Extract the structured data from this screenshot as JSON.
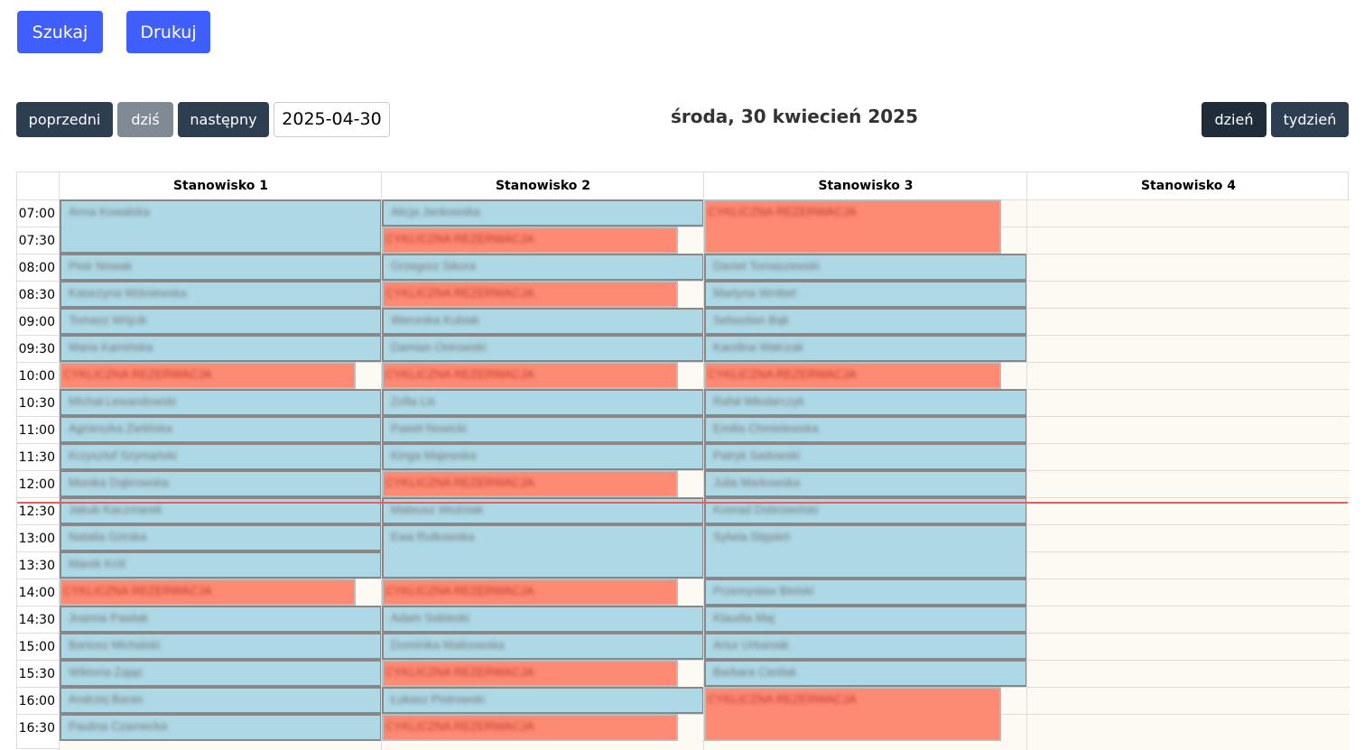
{
  "toolbar": {
    "search": "Szukaj",
    "print": "Drukuj",
    "prev": "poprzedni",
    "today": "dziś",
    "next": "następny",
    "date": "2025-04-30",
    "view_day": "dzień",
    "view_week": "tydzień"
  },
  "title": "środa, 30 kwiecień 2025",
  "now": "12:35",
  "colors": {
    "reservation": "#add8e6",
    "cyclic": "#fd8a73",
    "primary": "#3f5efb",
    "nav": "#2c3e50"
  },
  "times": [
    "07:00",
    "07:30",
    "08:00",
    "08:30",
    "09:00",
    "09:30",
    "10:00",
    "10:30",
    "11:00",
    "11:30",
    "12:00",
    "12:30",
    "13:00",
    "13:30",
    "14:00",
    "14:30",
    "15:00",
    "15:30",
    "16:00",
    "16:30"
  ],
  "columns": [
    {
      "name": "Stanowisko 1",
      "events": [
        {
          "start": "07:00",
          "slots": 2,
          "type": "r",
          "label": "Anna Kowalska"
        },
        {
          "start": "08:00",
          "slots": 1,
          "type": "r",
          "label": "Piotr Nowak"
        },
        {
          "start": "08:30",
          "slots": 1,
          "type": "r",
          "label": "Katarzyna Wiśniewska"
        },
        {
          "start": "09:00",
          "slots": 1,
          "type": "r",
          "label": "Tomasz Wójcik"
        },
        {
          "start": "09:30",
          "slots": 1,
          "type": "r",
          "label": "Maria Kamińska"
        },
        {
          "start": "10:00",
          "slots": 1,
          "type": "c",
          "label": "CYKLICZNA REZERWACJA"
        },
        {
          "start": "10:30",
          "slots": 1,
          "type": "r",
          "label": "Michał Lewandowski"
        },
        {
          "start": "11:00",
          "slots": 1,
          "type": "r",
          "label": "Agnieszka Zielińska"
        },
        {
          "start": "11:30",
          "slots": 1,
          "type": "r",
          "label": "Krzysztof Szymański"
        },
        {
          "start": "12:00",
          "slots": 1,
          "type": "r",
          "label": "Monika Dąbrowska"
        },
        {
          "start": "12:30",
          "slots": 1,
          "type": "r",
          "label": "Jakub Kaczmarek"
        },
        {
          "start": "13:00",
          "slots": 1,
          "type": "r",
          "label": "Natalia Górska"
        },
        {
          "start": "13:30",
          "slots": 1,
          "type": "r",
          "label": "Marek Król"
        },
        {
          "start": "14:00",
          "slots": 1,
          "type": "c",
          "label": "CYKLICZNA REZERWACJA"
        },
        {
          "start": "14:30",
          "slots": 1,
          "type": "r",
          "label": "Joanna Pawlak"
        },
        {
          "start": "15:00",
          "slots": 1,
          "type": "r",
          "label": "Bartosz Michalski"
        },
        {
          "start": "15:30",
          "slots": 1,
          "type": "r",
          "label": "Wiktoria Zając"
        },
        {
          "start": "16:00",
          "slots": 1,
          "type": "r",
          "label": "Andrzej Baran"
        },
        {
          "start": "16:30",
          "slots": 1,
          "type": "r",
          "label": "Paulina Czarnecka"
        }
      ]
    },
    {
      "name": "Stanowisko 2",
      "events": [
        {
          "start": "07:00",
          "slots": 1,
          "type": "r",
          "label": "Alicja Jankowska"
        },
        {
          "start": "07:30",
          "slots": 1,
          "type": "c",
          "label": "CYKLICZNA REZERWACJA"
        },
        {
          "start": "08:00",
          "slots": 1,
          "type": "r",
          "label": "Grzegorz Sikora"
        },
        {
          "start": "08:30",
          "slots": 1,
          "type": "c",
          "label": "CYKLICZNA REZERWACJA"
        },
        {
          "start": "09:00",
          "slots": 1,
          "type": "r",
          "label": "Weronika Kubiak"
        },
        {
          "start": "09:30",
          "slots": 1,
          "type": "r",
          "label": "Damian Ostrowski"
        },
        {
          "start": "10:00",
          "slots": 1,
          "type": "c",
          "label": "CYKLICZNA REZERWACJA"
        },
        {
          "start": "10:30",
          "slots": 1,
          "type": "r",
          "label": "Zofia Lis"
        },
        {
          "start": "11:00",
          "slots": 1,
          "type": "r",
          "label": "Paweł Nowicki"
        },
        {
          "start": "11:30",
          "slots": 1,
          "type": "r",
          "label": "Kinga Majewska"
        },
        {
          "start": "12:00",
          "slots": 1,
          "type": "c",
          "label": "CYKLICZNA REZERWACJA"
        },
        {
          "start": "12:30",
          "slots": 1,
          "type": "r",
          "label": "Mateusz Woźniak"
        },
        {
          "start": "13:00",
          "slots": 2,
          "type": "r",
          "label": "Ewa Rutkowska"
        },
        {
          "start": "14:00",
          "slots": 1,
          "type": "c",
          "label": "CYKLICZNA REZERWACJA"
        },
        {
          "start": "14:30",
          "slots": 1,
          "type": "r",
          "label": "Adam Sobieski"
        },
        {
          "start": "15:00",
          "slots": 1,
          "type": "r",
          "label": "Dominika Malinowska"
        },
        {
          "start": "15:30",
          "slots": 1,
          "type": "c",
          "label": "CYKLICZNA REZERWACJA"
        },
        {
          "start": "16:00",
          "slots": 1,
          "type": "r",
          "label": "Łukasz Piotrowski"
        },
        {
          "start": "16:30",
          "slots": 1,
          "type": "c",
          "label": "CYKLICZNA REZERWACJA"
        }
      ]
    },
    {
      "name": "Stanowisko 3",
      "events": [
        {
          "start": "07:00",
          "slots": 2,
          "type": "c",
          "label": "CYKLICZNA REZERWACJA"
        },
        {
          "start": "08:00",
          "slots": 1,
          "type": "r",
          "label": "Daniel Tomaszewski"
        },
        {
          "start": "08:30",
          "slots": 1,
          "type": "r",
          "label": "Martyna Wróbel"
        },
        {
          "start": "09:00",
          "slots": 1,
          "type": "r",
          "label": "Sebastian Bąk"
        },
        {
          "start": "09:30",
          "slots": 1,
          "type": "r",
          "label": "Karolina Walczak"
        },
        {
          "start": "10:00",
          "slots": 1,
          "type": "c",
          "label": "CYKLICZNA REZERWACJA"
        },
        {
          "start": "10:30",
          "slots": 1,
          "type": "r",
          "label": "Rafał Włodarczyk"
        },
        {
          "start": "11:00",
          "slots": 1,
          "type": "r",
          "label": "Emilia Chmielewska"
        },
        {
          "start": "11:30",
          "slots": 1,
          "type": "r",
          "label": "Patryk Sadowski"
        },
        {
          "start": "12:00",
          "slots": 1,
          "type": "r",
          "label": "Julia Markowska"
        },
        {
          "start": "12:30",
          "slots": 1,
          "type": "r",
          "label": "Konrad Dobrowolski"
        },
        {
          "start": "13:00",
          "slots": 2,
          "type": "r",
          "label": "Sylwia Stępień"
        },
        {
          "start": "14:00",
          "slots": 1,
          "type": "r",
          "label": "Przemysław Bielski"
        },
        {
          "start": "14:30",
          "slots": 1,
          "type": "r",
          "label": "Klaudia Maj"
        },
        {
          "start": "15:00",
          "slots": 1,
          "type": "r",
          "label": "Artur Urbaniak"
        },
        {
          "start": "15:30",
          "slots": 1,
          "type": "r",
          "label": "Barbara Cieślak"
        },
        {
          "start": "16:00",
          "slots": 2,
          "type": "c",
          "label": "CYKLICZNA REZERWACJA"
        }
      ]
    },
    {
      "name": "Stanowisko 4",
      "events": []
    }
  ]
}
